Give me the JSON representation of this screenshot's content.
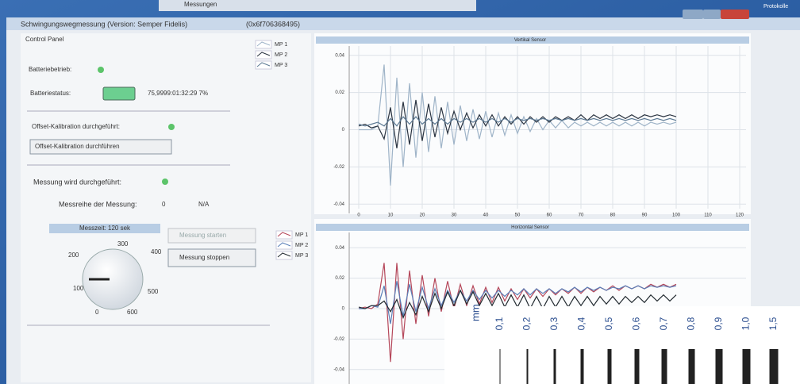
{
  "desktop": {
    "back_window_label": "Messungen",
    "corner_label": "Protokolle"
  },
  "window": {
    "title": "Schwingungswegmessung (Version: Semper Fidelis)",
    "id": "(0x6f706368495)"
  },
  "control_panel": {
    "title": "Control Panel",
    "battery_mode": "Batteriebetrieb:",
    "battery_status": "Batteriestatus:",
    "battery_value": "75,9999:01:32:29 7%",
    "offset_done": "Offset-Kalibration durchgeführt:",
    "offset_button": "Offset-Kalibration durchführen",
    "measuring": "Messung wird durchgeführt:",
    "series_label": "Messreihe der Messung:",
    "series_value": "0",
    "series_status": "N/A",
    "time_header": "Messzeit: 120 sek",
    "dial_labels": [
      "0",
      "100",
      "200",
      "300",
      "400",
      "500",
      "600"
    ],
    "start_button": "Messung starten",
    "stop_button": "Messung stoppen"
  },
  "ruler": {
    "unit": "mm",
    "labels": [
      "0,1",
      "0,2",
      "0,3",
      "0,4",
      "0,5",
      "0,6",
      "0,7",
      "0,8",
      "0,9",
      "1,0",
      "1,5"
    ]
  },
  "chart_data": [
    {
      "type": "line",
      "title": "Vertikal Sensor",
      "grid": true,
      "xlim": [
        -3,
        122
      ],
      "ylim": [
        -0.045,
        0.045
      ],
      "xticks": [
        0,
        10,
        20,
        30,
        40,
        50,
        60,
        70,
        80,
        90,
        100,
        110,
        120
      ],
      "yticks": [
        0.04,
        0.02,
        0,
        -0.02,
        -0.04
      ],
      "x": [
        0,
        2,
        4,
        6,
        8,
        10,
        12,
        14,
        16,
        18,
        20,
        22,
        24,
        26,
        28,
        30,
        32,
        34,
        36,
        38,
        40,
        42,
        44,
        46,
        48,
        50,
        52,
        54,
        56,
        58,
        60,
        62,
        64,
        66,
        68,
        70,
        72,
        74,
        76,
        78,
        80,
        82,
        84,
        86,
        88,
        90,
        92,
        94,
        96,
        98,
        100
      ],
      "series": [
        {
          "name": "MP 1",
          "color": "#9fb4c8",
          "values": [
            0,
            0,
            0,
            0.002,
            0.035,
            -0.03,
            0.028,
            -0.02,
            0.025,
            -0.015,
            0.02,
            -0.012,
            0.018,
            -0.01,
            0.015,
            -0.008,
            0.013,
            -0.006,
            0.011,
            -0.005,
            0.01,
            -0.004,
            0.009,
            -0.003,
            0.008,
            -0.002,
            0.007,
            -0.001,
            0.006,
            0,
            0.005,
            0.001,
            0.005,
            0.001,
            0.004,
            0.002,
            0.004,
            0.002,
            0.004,
            0.002,
            0.004,
            0.002,
            0.004,
            0.002,
            0.004,
            0.002,
            0.004,
            0.003,
            0.004,
            0.003,
            0.004
          ]
        },
        {
          "name": "MP 2",
          "color": "#2a3340",
          "values": [
            0.002,
            0.003,
            0.001,
            0.002,
            -0.005,
            0.012,
            -0.01,
            0.015,
            -0.008,
            0.016,
            -0.006,
            0.014,
            -0.004,
            0.012,
            -0.002,
            0.01,
            0,
            0.009,
            0.001,
            0.008,
            0.002,
            0.008,
            0.002,
            0.007,
            0.003,
            0.007,
            0.003,
            0.007,
            0.004,
            0.007,
            0.004,
            0.007,
            0.005,
            0.007,
            0.005,
            0.008,
            0.005,
            0.008,
            0.006,
            0.008,
            0.006,
            0.008,
            0.006,
            0.008,
            0.006,
            0.008,
            0.007,
            0.008,
            0.007,
            0.008,
            0.007
          ]
        },
        {
          "name": "MP 3",
          "color": "#5d7a94",
          "values": [
            0.003,
            0.002,
            0.003,
            0.004,
            0.002,
            0.006,
            0.002,
            0.007,
            0.003,
            0.007,
            0.003,
            0.006,
            0.003,
            0.006,
            0.003,
            0.006,
            0.004,
            0.006,
            0.004,
            0.006,
            0.004,
            0.006,
            0.004,
            0.006,
            0.004,
            0.006,
            0.005,
            0.006,
            0.005,
            0.006,
            0.005,
            0.006,
            0.005,
            0.006,
            0.005,
            0.006,
            0.005,
            0.006,
            0.005,
            0.006,
            0.005,
            0.006,
            0.005,
            0.006,
            0.005,
            0.006,
            0.005,
            0.006,
            0.005,
            0.006,
            0.005
          ]
        }
      ]
    },
    {
      "type": "line",
      "title": "Horizontal Sensor",
      "grid": true,
      "xlim": [
        -3,
        122
      ],
      "ylim": [
        -0.05,
        0.05
      ],
      "yticks": [
        0.04,
        0.02,
        0,
        -0.02,
        -0.04
      ],
      "x": [
        0,
        2,
        4,
        6,
        8,
        10,
        12,
        14,
        16,
        18,
        20,
        22,
        24,
        26,
        28,
        30,
        32,
        34,
        36,
        38,
        40,
        42,
        44,
        46,
        48,
        50,
        52,
        54,
        56,
        58,
        60,
        62,
        64,
        66,
        68,
        70,
        72,
        74,
        76,
        78,
        80,
        82,
        84,
        86,
        88,
        90,
        92,
        94,
        96,
        98,
        100
      ],
      "series": [
        {
          "name": "MP 1",
          "color": "#b5475a",
          "values": [
            0,
            0.001,
            0,
            0.003,
            0.03,
            -0.035,
            0.03,
            -0.02,
            0.025,
            -0.01,
            0.022,
            -0.005,
            0.02,
            -0.002,
            0.018,
            0,
            0.016,
            0.002,
            0.015,
            0.003,
            0.014,
            0.004,
            0.014,
            0.005,
            0.013,
            0.006,
            0.013,
            0.007,
            0.013,
            0.008,
            0.013,
            0.009,
            0.013,
            0.01,
            0.014,
            0.01,
            0.014,
            0.011,
            0.014,
            0.012,
            0.015,
            0.012,
            0.015,
            0.013,
            0.015,
            0.013,
            0.016,
            0.014,
            0.016,
            0.014,
            0.016
          ]
        },
        {
          "name": "MP 2",
          "color": "#5a7fb8",
          "values": [
            0,
            0,
            0.002,
            0.001,
            0.015,
            -0.01,
            0.018,
            -0.005,
            0.016,
            -0.002,
            0.014,
            0,
            0.013,
            0.002,
            0.012,
            0.004,
            0.012,
            0.005,
            0.012,
            0.006,
            0.012,
            0.007,
            0.012,
            0.008,
            0.012,
            0.009,
            0.013,
            0.009,
            0.013,
            0.01,
            0.013,
            0.01,
            0.013,
            0.011,
            0.014,
            0.011,
            0.014,
            0.012,
            0.014,
            0.012,
            0.014,
            0.013,
            0.015,
            0.013,
            0.015,
            0.013,
            0.015,
            0.014,
            0.015,
            0.014,
            0.015
          ]
        },
        {
          "name": "MP 3",
          "color": "#222a30",
          "values": [
            0.001,
            0,
            0.002,
            0.002,
            0.005,
            -0.002,
            0.006,
            -0.006,
            0.004,
            -0.004,
            0.008,
            -0.002,
            0.01,
            0,
            0.011,
            0.002,
            0.012,
            0.003,
            0.011,
            0.002,
            0.01,
            0.002,
            0.01,
            0.001,
            0.009,
            0.001,
            0.009,
            0,
            0.008,
            0,
            0.008,
            0.001,
            0.008,
            0.001,
            0.008,
            0.002,
            0.008,
            0.002,
            0.008,
            0.003,
            0.008,
            0.003,
            0.008,
            0.004,
            0.008,
            0.004,
            0.009,
            0.005,
            0.009,
            0.005,
            0.009
          ]
        }
      ]
    }
  ]
}
